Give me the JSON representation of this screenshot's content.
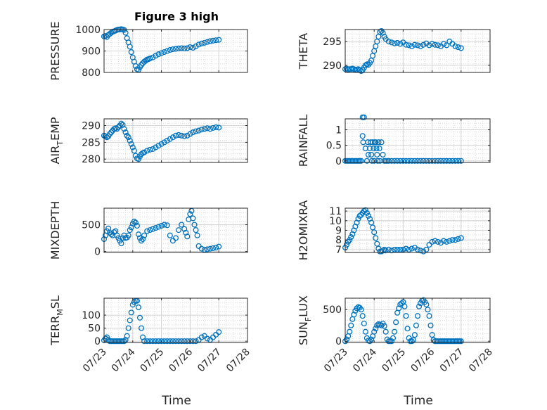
{
  "figure": {
    "title": "Figure 3 high",
    "x_tick_labels": [
      "07/23",
      "07/24",
      "07/25",
      "07/26",
      "07/27",
      "07/28"
    ],
    "x_label": "Time",
    "marker_color": "#0072BD"
  },
  "chart_data": [
    {
      "type": "scatter",
      "ylabel": "PRESSURE",
      "ylabel_base": "PRESSURE",
      "ylabel_sub": "",
      "ylabel_rest": "",
      "xlim": [
        0,
        5
      ],
      "ylim": [
        800,
        1000
      ],
      "yticks": [
        800,
        900,
        1000
      ],
      "grid": true,
      "minor_grid": true,
      "x": [
        0,
        0.05,
        0.1,
        0.15,
        0.2,
        0.25,
        0.3,
        0.35,
        0.4,
        0.45,
        0.5,
        0.55,
        0.6,
        0.65,
        0.7,
        0.75,
        0.8,
        0.85,
        0.9,
        0.95,
        1.0,
        1.05,
        1.1,
        1.15,
        1.2,
        1.25,
        1.3,
        1.35,
        1.4,
        1.45,
        1.5,
        1.55,
        1.6,
        1.7,
        1.8,
        1.9,
        2.0,
        2.1,
        2.2,
        2.3,
        2.4,
        2.5,
        2.6,
        2.7,
        2.8,
        2.9,
        3.0,
        3.1,
        3.2,
        3.3,
        3.4,
        3.5,
        3.6,
        3.7,
        3.8,
        3.9,
        4.0
      ],
      "y": [
        968,
        970,
        965,
        975,
        980,
        985,
        990,
        992,
        995,
        998,
        1000,
        1000,
        1002,
        1000,
        998,
        985,
        960,
        940,
        920,
        895,
        870,
        850,
        830,
        815,
        812,
        825,
        835,
        843,
        850,
        855,
        860,
        862,
        865,
        870,
        878,
        885,
        890,
        895,
        900,
        905,
        908,
        910,
        912,
        913,
        912,
        913,
        918,
        915,
        922,
        930,
        935,
        938,
        942,
        946,
        948,
        950,
        952
      ]
    },
    {
      "type": "scatter",
      "ylabel": "THETA",
      "ylabel_base": "THETA",
      "ylabel_sub": "",
      "ylabel_rest": "",
      "xlim": [
        0,
        5
      ],
      "ylim": [
        288.5,
        297.5
      ],
      "yticks": [
        290,
        295
      ],
      "grid": true,
      "minor_grid": true,
      "x": [
        0,
        0.05,
        0.1,
        0.15,
        0.2,
        0.25,
        0.3,
        0.35,
        0.4,
        0.45,
        0.5,
        0.55,
        0.6,
        0.65,
        0.7,
        0.75,
        0.8,
        0.85,
        0.9,
        0.95,
        1.0,
        1.05,
        1.1,
        1.15,
        1.2,
        1.25,
        1.3,
        1.35,
        1.4,
        1.5,
        1.6,
        1.7,
        1.8,
        1.9,
        2.0,
        2.1,
        2.2,
        2.3,
        2.4,
        2.5,
        2.6,
        2.7,
        2.8,
        2.9,
        3.0,
        3.1,
        3.2,
        3.3,
        3.4,
        3.5,
        3.6,
        3.7,
        3.8,
        3.9,
        4.0
      ],
      "y": [
        289.2,
        289.3,
        289.1,
        289.2,
        289.2,
        289.3,
        289.2,
        289.0,
        289.1,
        289.2,
        289.0,
        288.8,
        289.0,
        289.5,
        290.0,
        290.2,
        290.1,
        290.5,
        291.0,
        292.0,
        293.0,
        294.0,
        295.0,
        296.0,
        297.0,
        297.2,
        296.8,
        296.0,
        295.5,
        295.0,
        294.8,
        294.6,
        294.7,
        294.5,
        294.8,
        294.3,
        294.2,
        294.0,
        294.3,
        294.2,
        294.0,
        294.3,
        294.6,
        294.2,
        294.5,
        294.3,
        294.2,
        294.0,
        294.5,
        294.2,
        295.0,
        294.5,
        294.0,
        293.8,
        293.6
      ]
    },
    {
      "type": "scatter",
      "ylabel": "AIR_TEMP",
      "ylabel_base": "AIR",
      "ylabel_sub": "T",
      "ylabel_rest": "EMP",
      "xlim": [
        0,
        5
      ],
      "ylim": [
        279,
        292
      ],
      "yticks": [
        280,
        285,
        290
      ],
      "grid": true,
      "minor_grid": true,
      "x": [
        0,
        0.05,
        0.1,
        0.15,
        0.2,
        0.25,
        0.3,
        0.35,
        0.4,
        0.45,
        0.5,
        0.55,
        0.6,
        0.65,
        0.7,
        0.75,
        0.8,
        0.85,
        0.9,
        0.95,
        1.0,
        1.05,
        1.1,
        1.15,
        1.2,
        1.25,
        1.3,
        1.35,
        1.4,
        1.5,
        1.6,
        1.7,
        1.8,
        1.9,
        2.0,
        2.1,
        2.2,
        2.3,
        2.4,
        2.5,
        2.6,
        2.7,
        2.8,
        2.9,
        3.0,
        3.1,
        3.2,
        3.3,
        3.4,
        3.5,
        3.6,
        3.7,
        3.8,
        3.9,
        4.0
      ],
      "y": [
        287.0,
        286.8,
        286.5,
        286.8,
        287.5,
        288.0,
        288.5,
        289.0,
        289.2,
        289.0,
        289.5,
        290.0,
        290.6,
        290.2,
        289.0,
        288.0,
        287.0,
        286.5,
        285.5,
        284.5,
        283.5,
        282.5,
        281.0,
        280.2,
        280.0,
        280.8,
        281.5,
        281.8,
        282.0,
        282.5,
        282.8,
        283.0,
        283.5,
        284.0,
        284.5,
        285.0,
        285.5,
        286.0,
        286.5,
        287.0,
        287.2,
        287.0,
        286.8,
        287.0,
        287.5,
        288.0,
        288.3,
        288.5,
        288.8,
        289.0,
        289.2,
        289.0,
        289.3,
        289.5,
        289.4
      ]
    },
    {
      "type": "scatter",
      "ylabel": "RAINFALL",
      "ylabel_base": "RAINFALL",
      "ylabel_sub": "",
      "ylabel_rest": "",
      "xlim": [
        0,
        5
      ],
      "ylim": [
        -0.05,
        1.35
      ],
      "yticks": [
        0,
        0.5,
        1
      ],
      "ytick_labels": [
        "0",
        "0.5",
        "1"
      ],
      "grid": true,
      "minor_grid": true,
      "x": [
        0,
        0.05,
        0.1,
        0.15,
        0.2,
        0.25,
        0.3,
        0.35,
        0.4,
        0.45,
        0.5,
        0.55,
        0.6,
        0.6,
        0.62,
        0.65,
        0.7,
        0.75,
        0.78,
        0.8,
        0.85,
        0.88,
        0.9,
        0.92,
        0.95,
        0.98,
        1.0,
        1.02,
        1.05,
        1.08,
        1.1,
        1.12,
        1.15,
        1.18,
        1.2,
        1.25,
        1.3,
        1.35,
        1.4,
        1.45,
        1.5,
        1.6,
        1.7,
        1.8,
        1.9,
        2.0,
        2.1,
        2.2,
        2.3,
        2.4,
        2.5,
        2.6,
        2.7,
        2.8,
        2.9,
        3.0,
        3.1,
        3.2,
        3.3,
        3.4,
        3.5,
        3.6,
        3.7,
        3.8,
        3.9,
        4.0
      ],
      "y": [
        0,
        0,
        0,
        0,
        0,
        0,
        0,
        0,
        0,
        0,
        0,
        0,
        0.8,
        1.4,
        0.6,
        1.4,
        0.4,
        0,
        0.6,
        0.2,
        0.4,
        0.6,
        0.2,
        0,
        0.6,
        0.4,
        0,
        0.6,
        0.6,
        0.4,
        0.2,
        0,
        0.6,
        0.4,
        0,
        0.6,
        0.2,
        0,
        0,
        0,
        0,
        0,
        0,
        0,
        0,
        0,
        0,
        0,
        0,
        0,
        0,
        0,
        0,
        0,
        0,
        0,
        0,
        0,
        0,
        0,
        0,
        0,
        0,
        0,
        0,
        0
      ]
    },
    {
      "type": "scatter",
      "ylabel": "MIXDEPTH",
      "ylabel_base": "MIXDEPTH",
      "ylabel_sub": "",
      "ylabel_rest": "",
      "xlim": [
        0,
        5
      ],
      "ylim": [
        -20,
        810
      ],
      "yticks": [
        0,
        500
      ],
      "grid": true,
      "minor_grid": true,
      "x": [
        0,
        0.05,
        0.1,
        0.15,
        0.2,
        0.25,
        0.3,
        0.35,
        0.4,
        0.45,
        0.5,
        0.55,
        0.6,
        0.65,
        0.7,
        0.75,
        0.8,
        0.85,
        0.9,
        0.95,
        1.0,
        1.05,
        1.1,
        1.15,
        1.2,
        1.25,
        1.3,
        1.35,
        1.4,
        1.5,
        1.6,
        1.7,
        1.8,
        1.9,
        2.0,
        2.1,
        2.2,
        2.3,
        2.4,
        2.5,
        2.6,
        2.7,
        2.8,
        2.85,
        2.9,
        2.95,
        3.0,
        3.05,
        3.1,
        3.15,
        3.2,
        3.25,
        3.3,
        3.4,
        3.5,
        3.6,
        3.7,
        3.8,
        3.9,
        4.0
      ],
      "y": [
        230,
        300,
        380,
        430,
        350,
        320,
        300,
        360,
        380,
        300,
        250,
        200,
        150,
        250,
        300,
        250,
        260,
        300,
        400,
        450,
        520,
        560,
        540,
        480,
        320,
        250,
        200,
        230,
        300,
        380,
        400,
        420,
        440,
        460,
        480,
        500,
        490,
        300,
        200,
        250,
        400,
        500,
        420,
        350,
        280,
        600,
        700,
        760,
        620,
        500,
        400,
        300,
        100,
        50,
        30,
        40,
        50,
        60,
        70,
        90
      ]
    },
    {
      "type": "scatter",
      "ylabel": "H2OMIXRA",
      "ylabel_base": "H2OMIXRA",
      "ylabel_sub": "",
      "ylabel_rest": "",
      "xlim": [
        0,
        5
      ],
      "ylim": [
        6.7,
        11.3
      ],
      "yticks": [
        7,
        8,
        9,
        10,
        11
      ],
      "grid": true,
      "minor_grid": true,
      "x": [
        0,
        0.05,
        0.1,
        0.15,
        0.2,
        0.25,
        0.3,
        0.35,
        0.4,
        0.45,
        0.5,
        0.55,
        0.6,
        0.65,
        0.7,
        0.75,
        0.8,
        0.85,
        0.9,
        0.95,
        1.0,
        1.05,
        1.1,
        1.15,
        1.2,
        1.25,
        1.3,
        1.35,
        1.4,
        1.5,
        1.6,
        1.7,
        1.8,
        1.9,
        2.0,
        2.1,
        2.2,
        2.3,
        2.4,
        2.5,
        2.6,
        2.7,
        2.8,
        2.9,
        3.0,
        3.1,
        3.2,
        3.3,
        3.4,
        3.5,
        3.6,
        3.7,
        3.8,
        3.9,
        4.0
      ],
      "y": [
        7.2,
        7.5,
        7.8,
        8.0,
        8.3,
        8.6,
        9.0,
        9.4,
        9.8,
        10.2,
        10.5,
        10.6,
        10.8,
        11.0,
        11.1,
        10.8,
        10.5,
        10.2,
        9.8,
        9.3,
        8.8,
        8.2,
        7.6,
        7.1,
        6.8,
        6.8,
        6.9,
        7.0,
        6.9,
        7.0,
        6.9,
        7.0,
        7.0,
        7.0,
        7.0,
        7.1,
        7.0,
        7.1,
        7.2,
        7.0,
        6.9,
        6.8,
        7.0,
        7.5,
        7.8,
        7.9,
        7.8,
        7.7,
        7.9,
        7.8,
        7.9,
        8.0,
        8.0,
        8.1,
        8.2
      ]
    },
    {
      "type": "scatter",
      "ylabel": "TERR_MSL",
      "ylabel_base": "TERR",
      "ylabel_sub": "M",
      "ylabel_rest": "SL",
      "xlim": [
        0,
        5
      ],
      "ylim": [
        -5,
        165
      ],
      "yticks": [
        0,
        50,
        100
      ],
      "grid": true,
      "minor_grid": true,
      "x": [
        0,
        0.05,
        0.1,
        0.15,
        0.2,
        0.25,
        0.3,
        0.35,
        0.4,
        0.45,
        0.5,
        0.55,
        0.6,
        0.65,
        0.7,
        0.75,
        0.8,
        0.85,
        0.9,
        0.95,
        1.0,
        1.05,
        1.1,
        1.15,
        1.2,
        1.25,
        1.3,
        1.35,
        1.4,
        1.5,
        1.6,
        1.7,
        1.8,
        1.9,
        2.0,
        2.1,
        2.2,
        2.3,
        2.4,
        2.5,
        2.6,
        2.7,
        2.8,
        2.9,
        3.0,
        3.1,
        3.2,
        3.3,
        3.4,
        3.5,
        3.6,
        3.7,
        3.8,
        3.9,
        4.0
      ],
      "y": [
        3,
        10,
        15,
        5,
        0,
        0,
        0,
        0,
        0,
        0,
        0,
        0,
        0,
        0,
        0,
        5,
        20,
        50,
        80,
        110,
        140,
        150,
        155,
        155,
        130,
        90,
        50,
        15,
        0,
        0,
        0,
        0,
        0,
        0,
        0,
        0,
        0,
        0,
        0,
        0,
        0,
        0,
        0,
        0,
        0,
        0,
        0,
        5,
        15,
        20,
        10,
        5,
        15,
        25,
        35
      ]
    },
    {
      "type": "scatter",
      "ylabel": "SUN_FLUX",
      "ylabel_base": "SUN",
      "ylabel_sub": "F",
      "ylabel_rest": "LUX",
      "xlim": [
        0,
        5
      ],
      "ylim": [
        -20,
        680
      ],
      "yticks": [
        0,
        500
      ],
      "grid": true,
      "minor_grid": true,
      "x": [
        0,
        0.05,
        0.1,
        0.15,
        0.2,
        0.25,
        0.3,
        0.35,
        0.4,
        0.45,
        0.5,
        0.55,
        0.6,
        0.65,
        0.7,
        0.75,
        0.8,
        0.85,
        0.9,
        0.95,
        1.0,
        1.05,
        1.1,
        1.15,
        1.2,
        1.25,
        1.3,
        1.35,
        1.4,
        1.45,
        1.5,
        1.55,
        1.6,
        1.65,
        1.7,
        1.75,
        1.8,
        1.85,
        1.9,
        1.95,
        2.0,
        2.05,
        2.1,
        2.15,
        2.2,
        2.25,
        2.3,
        2.35,
        2.4,
        2.45,
        2.5,
        2.55,
        2.6,
        2.65,
        2.7,
        2.75,
        2.8,
        2.85,
        2.9,
        2.95,
        3.0,
        3.05,
        3.1,
        3.15,
        3.2,
        3.25,
        3.3,
        3.35,
        3.4,
        3.45,
        3.5,
        3.55,
        3.6,
        3.65,
        3.7,
        3.75,
        3.8,
        3.85,
        3.9,
        3.95,
        4.0
      ],
      "y": [
        0,
        30,
        80,
        150,
        250,
        350,
        420,
        480,
        520,
        540,
        530,
        500,
        400,
        280,
        150,
        50,
        10,
        0,
        30,
        80,
        150,
        200,
        250,
        270,
        260,
        250,
        280,
        240,
        150,
        30,
        0,
        0,
        0,
        50,
        150,
        300,
        450,
        520,
        580,
        600,
        620,
        550,
        400,
        200,
        50,
        0,
        0,
        20,
        100,
        250,
        400,
        550,
        600,
        640,
        650,
        620,
        580,
        500,
        400,
        250,
        100,
        20,
        0,
        0,
        0,
        0,
        0,
        0,
        0,
        0,
        0,
        0,
        0,
        0,
        0,
        0,
        0,
        0,
        0,
        0,
        0
      ]
    }
  ]
}
